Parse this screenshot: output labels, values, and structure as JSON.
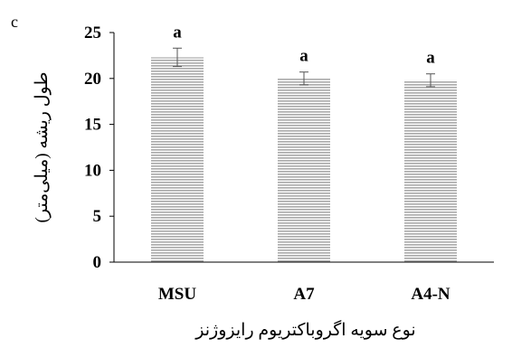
{
  "panel_label": "c",
  "chart_data": {
    "type": "bar",
    "categories": [
      "MSU",
      "A7",
      "A4-N"
    ],
    "values": [
      22.3,
      20.0,
      19.8
    ],
    "error": [
      1.0,
      0.7,
      0.7
    ],
    "significance": [
      "a",
      "a",
      "a"
    ],
    "xlabel": "نوع سویه اگروباکتریوم رایزوژنز",
    "ylabel": "طول ریشه (میلی‌متر)",
    "ylim": [
      0,
      25
    ],
    "yticks": [
      0,
      5,
      10,
      15,
      20,
      25
    ],
    "grid": false,
    "legend": "none",
    "bar_fill": "#a9a9a9",
    "bar_pattern": "horizontal-stripes"
  }
}
